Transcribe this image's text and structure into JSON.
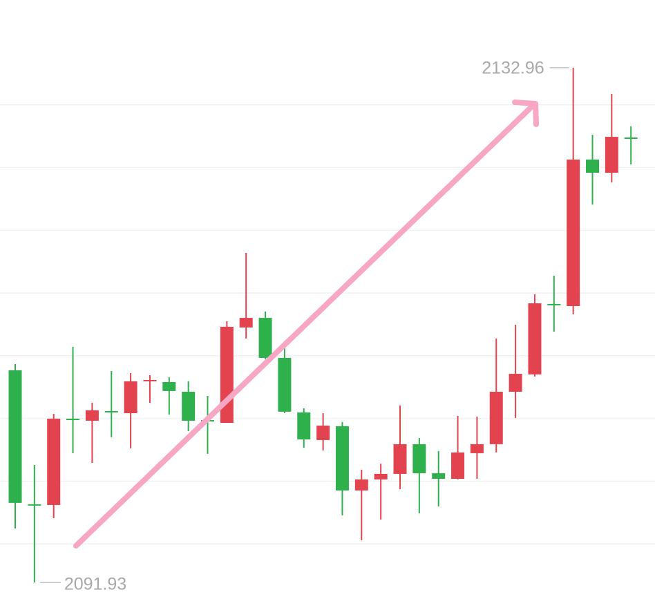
{
  "chart_data": {
    "type": "candlestick",
    "open": [
      2108.84,
      2098.16,
      2098.1,
      2104.98,
      2104.82,
      2105.59,
      2105.42,
      2107.96,
      2107.9,
      2107.13,
      2104.87,
      2104.65,
      2112.25,
      2113.02,
      2109.83,
      2105.48,
      2103.28,
      2104.38,
      2099.26,
      2100.14,
      2100.58,
      2102.95,
      2100.63,
      2100.19,
      2102.23,
      2102.95,
      2107.13,
      2108.51,
      2114.13,
      2113.96,
      2125.64,
      2124.59,
      2127.4
    ],
    "high": [
      2109.33,
      2101.29,
      2105.37,
      2110.71,
      2106.25,
      2108.78,
      2108.62,
      2108.45,
      2108.29,
      2107.96,
      2106.8,
      2112.75,
      2118.2,
      2113.52,
      2110.66,
      2105.81,
      2105.42,
      2104.71,
      2100.91,
      2101.4,
      2106.03,
      2103.44,
      2102.4,
      2105.2,
      2105.15,
      2111.37,
      2112.47,
      2114.9,
      2116.38,
      2132.96,
      2127.62,
      2130.87,
      2128.28
    ],
    "low": [
      2096.23,
      2091.93,
      2097.05,
      2102.23,
      2101.46,
      2103.5,
      2102.62,
      2106.25,
      2105.31,
      2103.99,
      2102.18,
      2104.65,
      2111.37,
      2109.72,
      2105.42,
      2102.67,
      2102.45,
      2097.27,
      2095.29,
      2096.94,
      2099.37,
      2097.44,
      2097.99,
      2100.14,
      2100.19,
      2102.29,
      2105.04,
      2108.34,
      2111.92,
      2113.3,
      2122.06,
      2123.82,
      2125.25
    ],
    "close": [
      2098.27,
      2098.05,
      2104.98,
      2104.87,
      2105.65,
      2105.48,
      2107.96,
      2108.07,
      2107.19,
      2104.82,
      2104.76,
      2112.31,
      2113.02,
      2109.83,
      2105.54,
      2103.33,
      2104.43,
      2099.26,
      2100.14,
      2100.58,
      2102.95,
      2100.63,
      2100.19,
      2102.29,
      2102.95,
      2107.13,
      2108.56,
      2114.18,
      2114.02,
      2125.64,
      2124.59,
      2127.45,
      2127.29
    ],
    "up_color": "#e2434f",
    "down_color": "#2eb04d",
    "ylim": [
      2089.89,
      2138.36
    ],
    "yticks": [
      2095,
      2100,
      2105,
      2110,
      2115,
      2120,
      2125,
      2130
    ],
    "grid": true,
    "high_label": 2132.96,
    "low_label": 2091.93
  }
}
